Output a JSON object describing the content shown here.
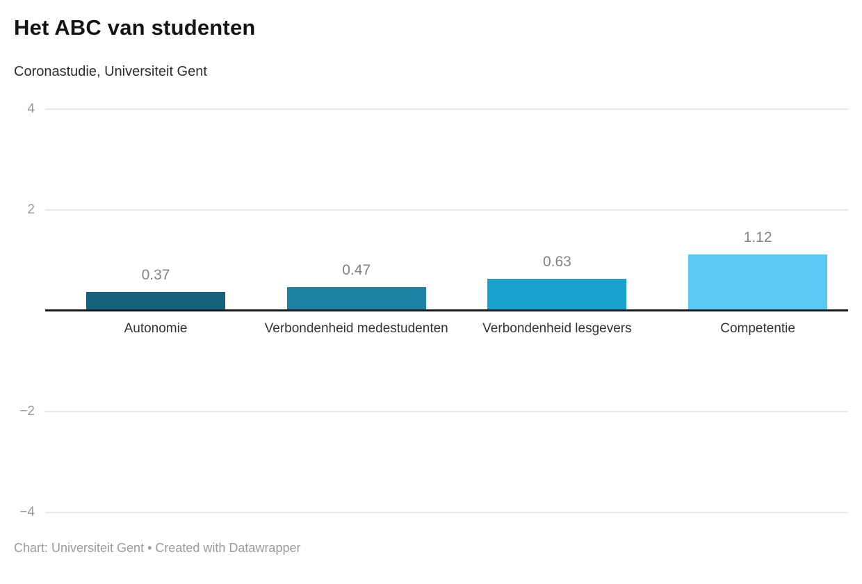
{
  "header": {
    "title": "Het ABC van studenten",
    "subtitle": "Coronastudie, Universiteit Gent"
  },
  "footer": {
    "text": "Chart: Universiteit Gent • Created with Datawrapper"
  },
  "chart_data": {
    "type": "bar",
    "title": "Het ABC van studenten",
    "subtitle": "Coronastudie, Universiteit Gent",
    "categories": [
      "Autonomie",
      "Verbondenheid medestudenten",
      "Verbondenheid lesgevers",
      "Competentie"
    ],
    "values": [
      0.37,
      0.47,
      0.63,
      1.12
    ],
    "value_labels": [
      "0.37",
      "0.47",
      "0.63",
      "1.12"
    ],
    "bar_colors": [
      "#15607a",
      "#1d81a2",
      "#18a1cd",
      "#5ac8f5"
    ],
    "xlabel": "",
    "ylabel": "",
    "ylim": [
      -4,
      4
    ],
    "yticks": [
      4,
      2,
      -2,
      -4
    ],
    "ytick_labels": [
      "4",
      "2",
      "−2",
      "−4"
    ],
    "grid": true,
    "legend": false,
    "zero_baseline": true,
    "source_note": "Chart: Universiteit Gent • Created with Datawrapper"
  },
  "colors": {
    "background": "#ffffff",
    "grid": "#e9e9e9",
    "baseline": "#1a1a1a",
    "tick_label": "#9a9a9a",
    "value_label": "#848484",
    "category_label": "#333333",
    "title": "#141414",
    "subtitle": "#2e2e2e",
    "footer": "#9a9a9a"
  }
}
